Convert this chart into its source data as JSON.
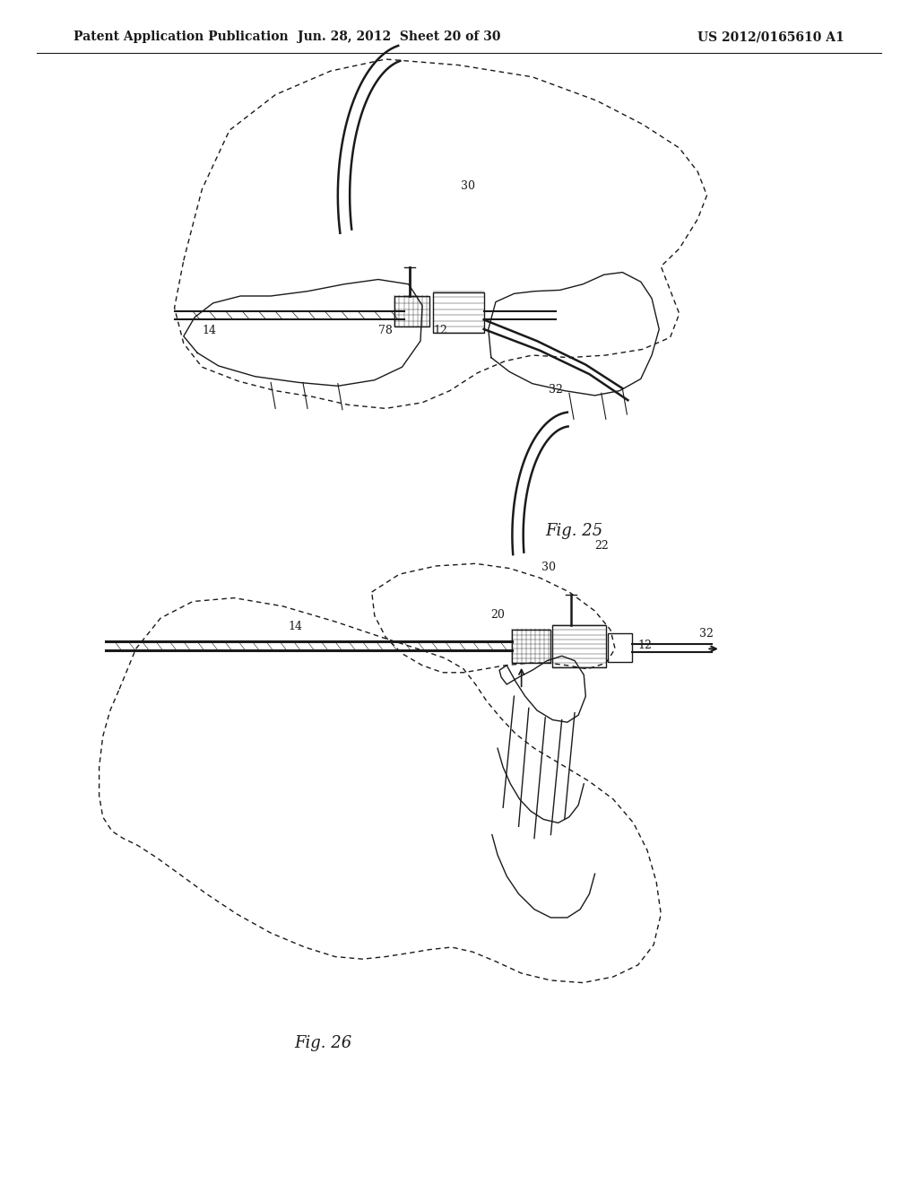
{
  "header_left": "Patent Application Publication",
  "header_mid": "Jun. 28, 2012  Sheet 20 of 30",
  "header_right": "US 2012/0165610 A1",
  "fig25_label": "Fig. 25",
  "fig26_label": "Fig. 26",
  "background_color": "#ffffff",
  "line_color": "#1a1a1a",
  "text_color": "#1a1a1a",
  "header_fontsize": 10,
  "fig_label_fontsize": 13,
  "annotation_fontsize": 9
}
